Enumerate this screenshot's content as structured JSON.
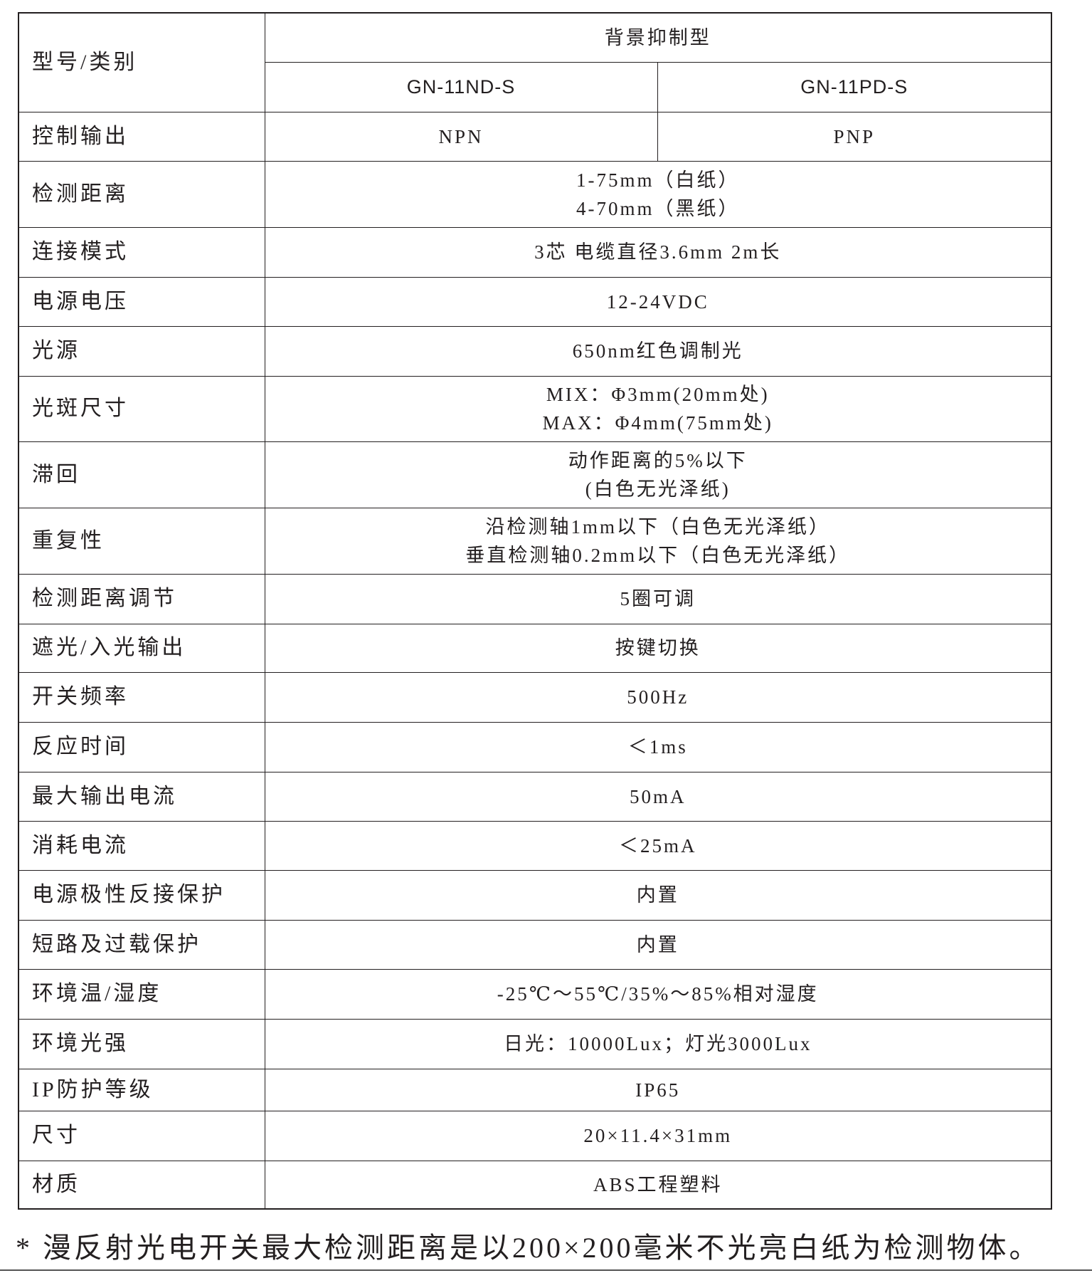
{
  "header": {
    "label": "型号/类别",
    "group": "背景抑制型",
    "models": [
      "GN-11ND-S",
      "GN-11PD-S"
    ]
  },
  "output_row": {
    "label": "控制输出",
    "values": [
      "NPN",
      "PNP"
    ]
  },
  "rows": [
    {
      "label": "检测距离",
      "lines": [
        "1-75mm（白纸）",
        "4-70mm（黑纸）"
      ]
    },
    {
      "label": "连接模式",
      "lines": [
        "3芯 电缆直径3.6mm 2m长"
      ]
    },
    {
      "label": "电源电压",
      "lines": [
        "12-24VDC"
      ]
    },
    {
      "label": "光源",
      "lines": [
        "650nm红色调制光"
      ]
    },
    {
      "label": "光斑尺寸",
      "lines": [
        "MIX：Φ3mm(20mm处)",
        "MAX：Φ4mm(75mm处)"
      ]
    },
    {
      "label": "滞回",
      "lines": [
        "动作距离的5%以下",
        "(白色无光泽纸)"
      ]
    },
    {
      "label": "重复性",
      "lines": [
        "沿检测轴1mm以下（白色无光泽纸）",
        "垂直检测轴0.2mm以下（白色无光泽纸）"
      ]
    },
    {
      "label": "检测距离调节",
      "lines": [
        "5圈可调"
      ]
    },
    {
      "label": "遮光/入光输出",
      "lines": [
        "按键切换"
      ]
    },
    {
      "label": "开关频率",
      "lines": [
        "500Hz"
      ]
    },
    {
      "label": "反应时间",
      "lines": [
        "＜1ms"
      ]
    },
    {
      "label": "最大输出电流",
      "lines": [
        "50mA"
      ]
    },
    {
      "label": "消耗电流",
      "lines": [
        "＜25mA"
      ]
    },
    {
      "label": "电源极性反接保护",
      "lines": [
        "内置"
      ]
    },
    {
      "label": "短路及过载保护",
      "lines": [
        "内置"
      ]
    },
    {
      "label": "环境温/湿度",
      "lines": [
        "-25℃～55℃/35%～85%相对湿度"
      ]
    },
    {
      "label": "环境光强",
      "lines": [
        "日光：10000Lux；灯光3000Lux"
      ]
    },
    {
      "label": "IP防护等级",
      "lines": [
        "IP65"
      ]
    },
    {
      "label": "尺寸",
      "lines": [
        "20×11.4×31mm"
      ]
    },
    {
      "label": "材质",
      "lines": [
        "ABS工程塑料"
      ]
    }
  ],
  "footnote": "* 漫反射光电开关最大检测距离是以200×200毫米不光亮白纸为检测物体。"
}
